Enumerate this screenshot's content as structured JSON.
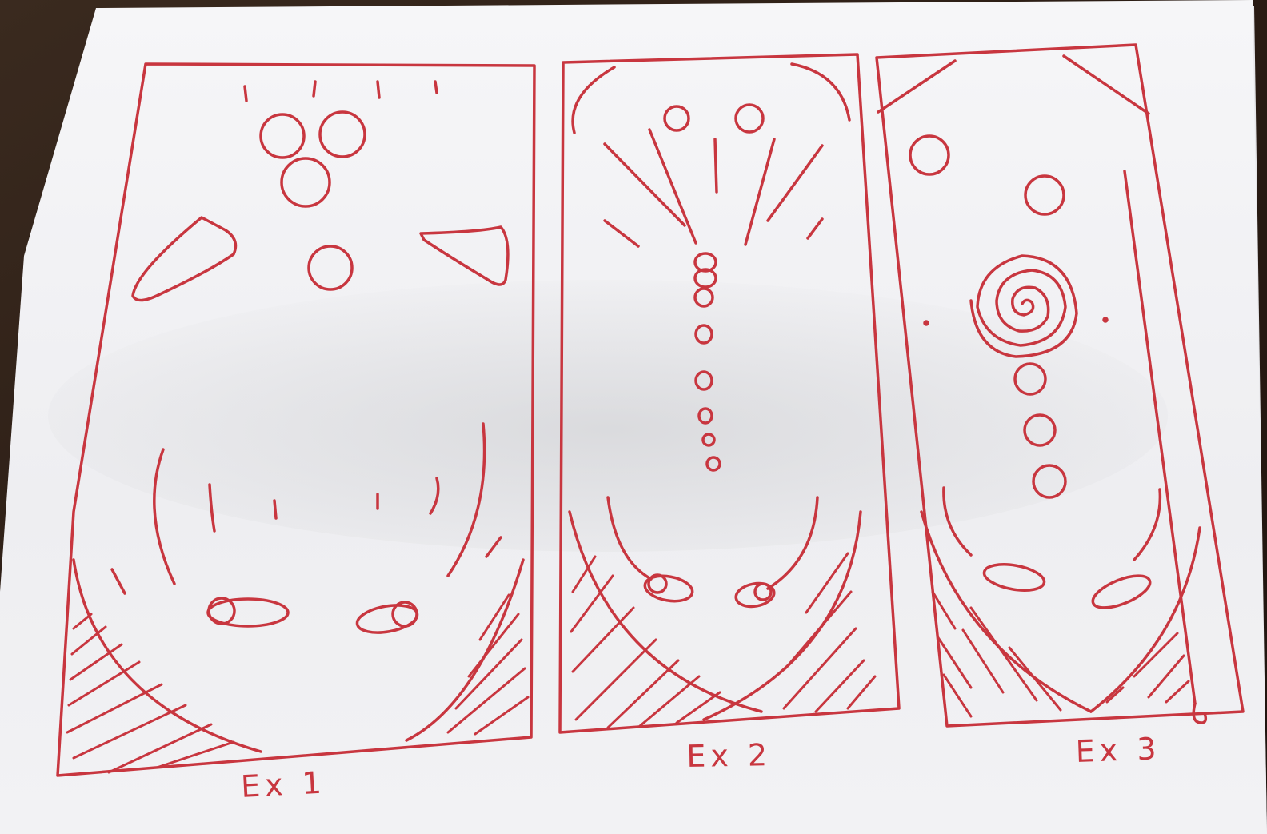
{
  "scene": {
    "description_labels": {
      "panel_1": "Ex 1",
      "panel_2": "Ex 2",
      "panel_3": "Ex 3"
    },
    "colors": {
      "ink": "#c8363f",
      "paper": "#f4f4f6",
      "paper_shadow": "#dcdde0",
      "table": "#2a1d16"
    }
  }
}
